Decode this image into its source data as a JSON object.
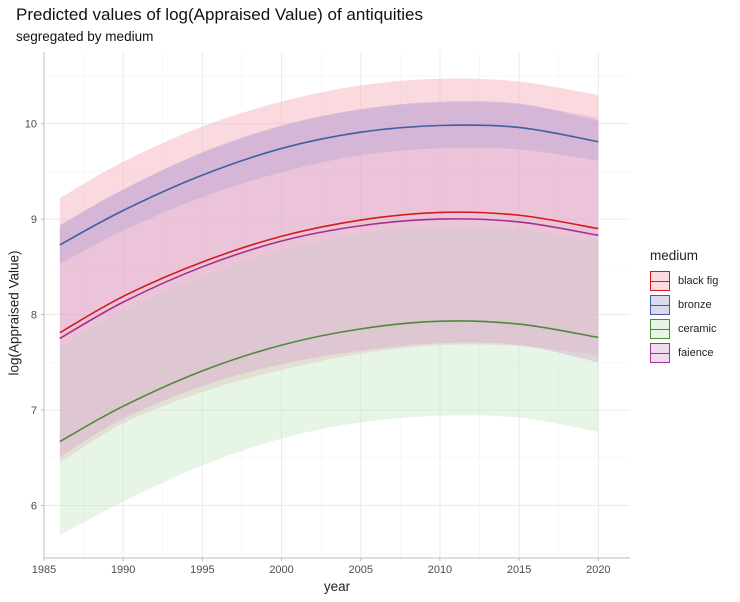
{
  "chart_data": {
    "type": "line",
    "title": "Predicted values of log(Appraised Value) of antiquities",
    "subtitle": "segregated by medium",
    "xlabel": "year",
    "ylabel": "log(Appraised Value)",
    "xlim": [
      1985,
      2022
    ],
    "ylim": [
      5.45,
      10.75
    ],
    "x_ticks": [
      1985,
      1990,
      1995,
      2000,
      2005,
      2010,
      2015,
      2020
    ],
    "y_ticks": [
      6,
      7,
      8,
      9,
      10
    ],
    "grid": true,
    "legend_title": "medium",
    "legend_position": "right",
    "series": [
      {
        "name": "black fig",
        "color": "#d7191c",
        "fill": "#f4a6b0",
        "x": [
          1986,
          1990,
          1995,
          2000,
          2005,
          2010,
          2015,
          2020
        ],
        "y": [
          7.81,
          8.19,
          8.55,
          8.82,
          8.99,
          9.07,
          9.04,
          8.9
        ],
        "lower": [
          6.45,
          6.86,
          7.19,
          7.42,
          7.59,
          7.68,
          7.67,
          7.57
        ],
        "upper": [
          9.22,
          9.6,
          9.97,
          10.23,
          10.4,
          10.47,
          10.44,
          10.3
        ]
      },
      {
        "name": "bronze",
        "color": "#3f5f9f",
        "fill": "#a3a3d6",
        "x": [
          1986,
          1990,
          1995,
          2000,
          2005,
          2010,
          2015,
          2020
        ],
        "y": [
          8.73,
          9.09,
          9.46,
          9.74,
          9.91,
          9.98,
          9.96,
          9.81
        ],
        "lower": [
          8.53,
          8.88,
          9.23,
          9.49,
          9.67,
          9.74,
          9.73,
          9.61
        ],
        "upper": [
          8.93,
          9.31,
          9.7,
          9.98,
          10.15,
          10.23,
          10.21,
          10.03
        ]
      },
      {
        "name": "ceramic",
        "color": "#4f8a3b",
        "fill": "#c3e6c0",
        "x": [
          1986,
          1990,
          1995,
          2000,
          2005,
          2010,
          2015,
          2020
        ],
        "y": [
          6.67,
          7.04,
          7.41,
          7.68,
          7.85,
          7.93,
          7.9,
          7.76
        ],
        "lower": [
          5.69,
          6.04,
          6.42,
          6.7,
          6.87,
          6.94,
          6.92,
          6.77
        ],
        "upper": [
          7.66,
          8.04,
          8.4,
          8.67,
          8.85,
          8.92,
          8.89,
          8.76
        ]
      },
      {
        "name": "faience",
        "color": "#a0338c",
        "fill": "#d6a6d2",
        "x": [
          1986,
          1990,
          1995,
          2000,
          2005,
          2010,
          2015,
          2020
        ],
        "y": [
          7.75,
          8.13,
          8.5,
          8.77,
          8.93,
          9.0,
          8.97,
          8.83
        ],
        "lower": [
          6.51,
          6.91,
          7.25,
          7.48,
          7.62,
          7.7,
          7.68,
          7.5
        ],
        "upper": [
          8.94,
          9.31,
          9.69,
          9.97,
          10.15,
          10.22,
          10.2,
          10.06
        ]
      }
    ]
  }
}
